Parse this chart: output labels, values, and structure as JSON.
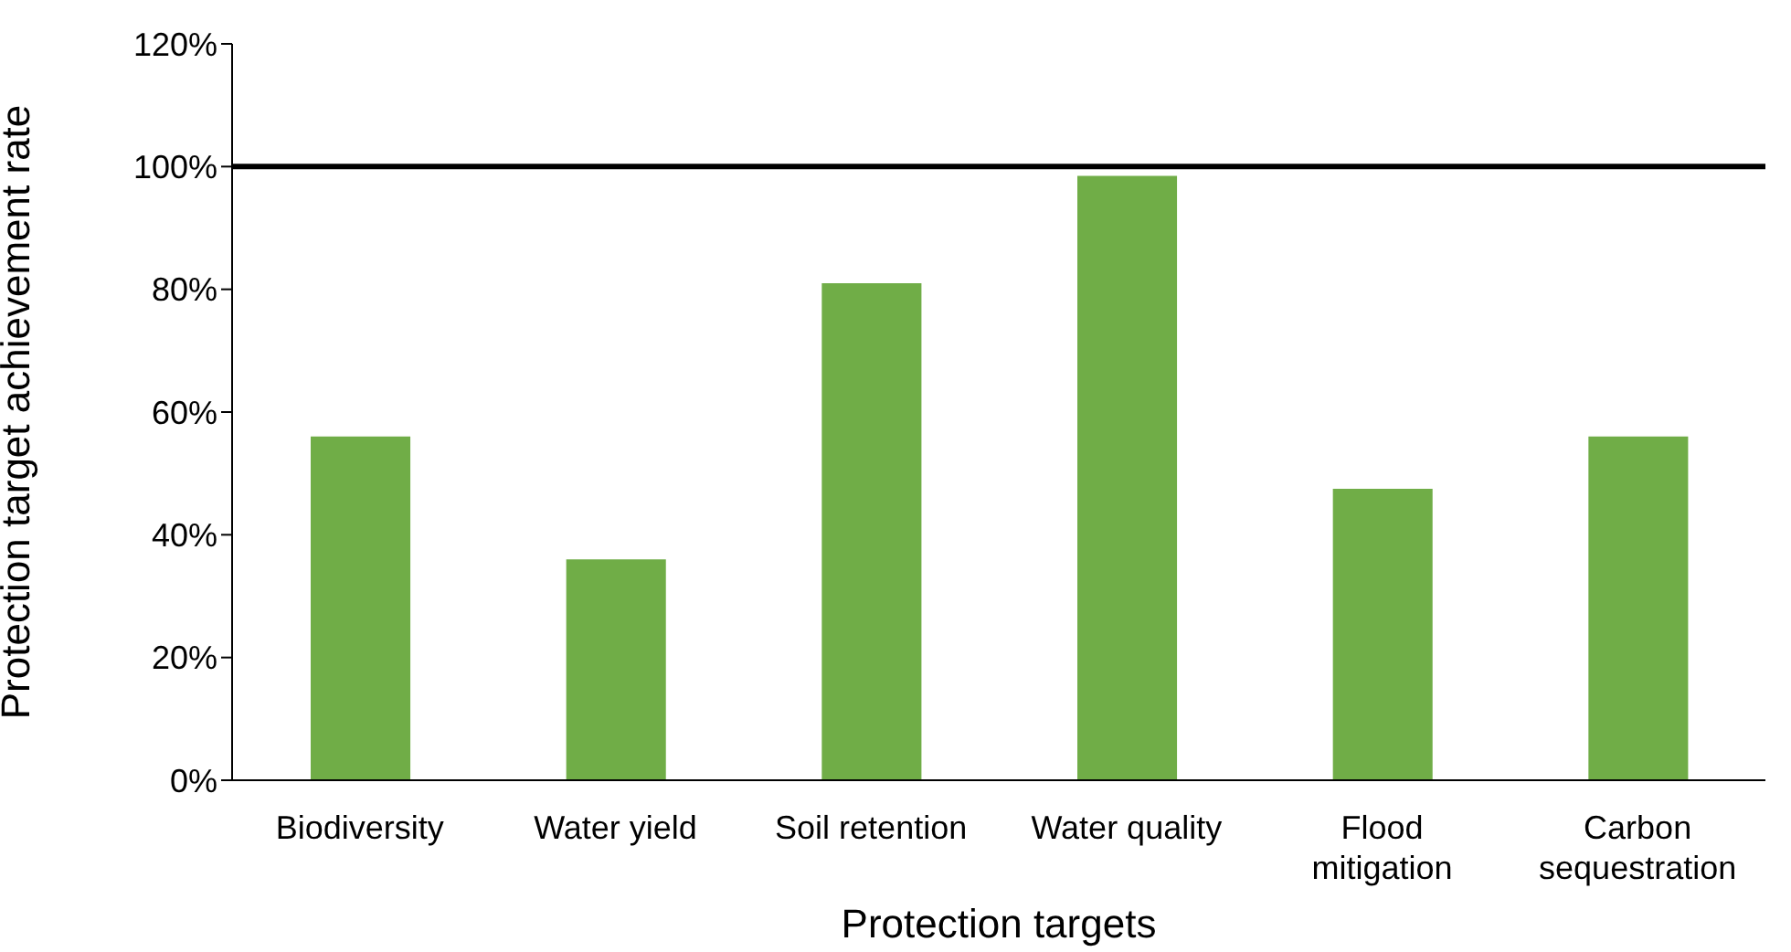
{
  "chart_data": {
    "type": "bar",
    "xlabel": "Protection targets",
    "ylabel": "Protection target achievement rate",
    "categories": [
      "Biodiversity",
      "Water yield",
      "Soil retention",
      "Water quality",
      "Flood mitigation",
      "Carbon sequestration"
    ],
    "values": [
      56,
      36,
      81,
      98.5,
      47.5,
      56
    ],
    "color": "#70ad47",
    "ylim": [
      0,
      120
    ],
    "yticks": [
      {
        "value": 0,
        "label": "0%"
      },
      {
        "value": 20,
        "label": "20%"
      },
      {
        "value": 40,
        "label": "40%"
      },
      {
        "value": 60,
        "label": "60%"
      },
      {
        "value": 80,
        "label": "80%"
      },
      {
        "value": 100,
        "label": "100%"
      },
      {
        "value": 120,
        "label": "120%"
      }
    ],
    "ref_lines": [
      {
        "axis": "y",
        "value": 100,
        "color": "#000000",
        "line_style": "solid"
      }
    ],
    "grid": false,
    "legend": false
  }
}
